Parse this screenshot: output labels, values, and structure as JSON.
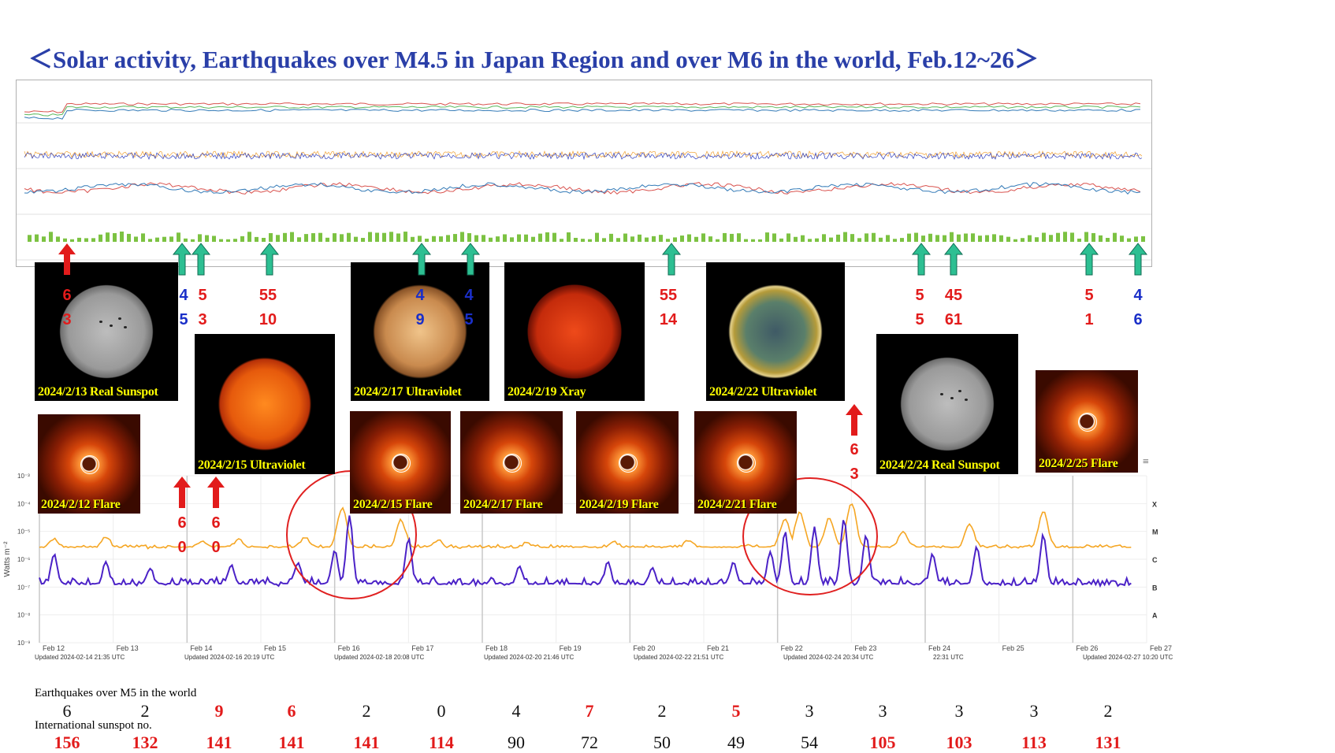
{
  "title": "＜Solar activity, Earthquakes over M4.5 in Japan Region and over M6 in the world, Feb.12~26＞",
  "colors": {
    "red": "#e21b1b",
    "blue": "#1a2fc8",
    "teal": "#2dbf92",
    "long_flux": "#f5a623",
    "short_flux": "#4b22c7",
    "title": "#2a3fa8"
  },
  "solar_images": [
    {
      "caption": "2024/2/13 Real Sunspot",
      "kind": "sunspot"
    },
    {
      "caption": "2024/2/15 Ultraviolet",
      "kind": "uv_red"
    },
    {
      "caption": "2024/2/17 Ultraviolet",
      "kind": "uv_gold"
    },
    {
      "caption": "2024/2/19 Xray",
      "kind": "xray"
    },
    {
      "caption": "2024/2/22 Ultraviolet",
      "kind": "uv_teal"
    },
    {
      "caption": "2024/2/24 Real Sunspot",
      "kind": "sunspot"
    },
    {
      "caption": "2024/2/25 Flare",
      "kind": "flare"
    },
    {
      "caption": "2024/2/12 Flare",
      "kind": "flare"
    },
    {
      "caption": "2024/2/15 Flare",
      "kind": "flare"
    },
    {
      "caption": "2024/2/17 Flare",
      "kind": "flare"
    },
    {
      "caption": "2024/2/19 Flare",
      "kind": "flare"
    },
    {
      "caption": "2024/2/21 Flare",
      "kind": "flare"
    }
  ],
  "quake_markers": [
    {
      "arrow": "red",
      "top": "6",
      "bottom": "3"
    },
    {
      "arrow": "teal",
      "top": "4",
      "bottom": "5",
      "top_color": "blue",
      "bottom_color": "blue"
    },
    {
      "arrow": "teal",
      "top": "5",
      "bottom": "3"
    },
    {
      "arrow": "teal",
      "top": "55",
      "bottom": "10"
    },
    {
      "arrow": "teal",
      "top": "4",
      "bottom": "9",
      "top_color": "blue",
      "bottom_color": "blue"
    },
    {
      "arrow": "teal",
      "top": "4",
      "bottom": "5",
      "top_color": "blue",
      "bottom_color": "blue"
    },
    {
      "arrow": "teal",
      "top": "55",
      "bottom": "14"
    },
    {
      "arrow": "teal",
      "top": "5",
      "bottom": "5"
    },
    {
      "arrow": "teal",
      "top": "45",
      "bottom": "61"
    },
    {
      "arrow": "teal",
      "top": "5",
      "bottom": "1"
    },
    {
      "arrow": "teal",
      "top": "4",
      "bottom": "6",
      "top_color": "blue",
      "bottom_color": "blue"
    },
    {
      "arrow": "red",
      "top": "6",
      "bottom": "0"
    },
    {
      "arrow": "red",
      "top": "6",
      "bottom": "0"
    },
    {
      "arrow": "red",
      "top": "6",
      "bottom": "3"
    }
  ],
  "chart_data": {
    "type": "line",
    "title": "",
    "ylabel": "Watts m⁻²",
    "y_scale": "log",
    "ylim": [
      1e-09,
      0.001
    ],
    "y_ticks": [
      "10⁻³",
      "10⁻⁴",
      "10⁻⁵",
      "10⁻⁶",
      "10⁻⁷",
      "10⁻⁸",
      "10⁻⁹"
    ],
    "class_labels": [
      "X",
      "M",
      "C",
      "B",
      "A"
    ],
    "x_ticks": [
      "Feb 12",
      "Feb 13",
      "Feb 14",
      "Feb 15",
      "Feb 16",
      "Feb 17",
      "Feb 18",
      "Feb 19",
      "Feb 20",
      "Feb 21",
      "Feb 22",
      "Feb 23",
      "Feb 24",
      "Feb 25",
      "Feb 26",
      "Feb 27"
    ],
    "updated_labels": [
      "Updated 2024-02-14 21:35 UTC",
      "Updated 2024-02-16 20:19 UTC",
      "Updated 2024-02-18 20:08 UTC",
      "Updated 2024-02-20 21:46 UTC",
      "Updated 2024-02-22 21:51 UTC",
      "Updated 2024-02-24 20:34 UTC",
      "22:31 UTC",
      "Updated 2024-02-27 10:20 UTC"
    ],
    "series": [
      {
        "name": "",
        "color": "#f5a623",
        "peaks": [
          [
            12.2,
            5.4e-06
          ],
          [
            12.9,
            6e-06
          ],
          [
            14.2,
            4.5e-06
          ],
          [
            14.7,
            5e-06
          ],
          [
            15.6,
            6e-06
          ],
          [
            16.1,
            7e-05
          ],
          [
            16.9,
            2.5e-05
          ],
          [
            17.4,
            5e-06
          ],
          [
            18.6,
            4e-06
          ],
          [
            19.8,
            4e-06
          ],
          [
            20.8,
            5e-06
          ],
          [
            21.6,
            3.5e-06
          ],
          [
            22.1,
            3e-05
          ],
          [
            22.3,
            5e-05
          ],
          [
            22.7,
            3e-05
          ],
          [
            23.0,
            0.00011
          ],
          [
            23.7,
            1e-05
          ],
          [
            24.6,
            2e-05
          ],
          [
            25.6,
            5e-05
          ],
          [
            26.6,
            3e-06
          ]
        ],
        "baseline": 2.5e-06
      },
      {
        "name": "",
        "color": "#4b22c7",
        "peaks": [
          [
            12.2,
            1.5e-06
          ],
          [
            12.9,
            8e-07
          ],
          [
            13.5,
            5e-07
          ],
          [
            14.6,
            6e-07
          ],
          [
            15.5,
            8e-07
          ],
          [
            16.0,
            2e-06
          ],
          [
            16.2,
            4e-05
          ],
          [
            17.0,
            6e-06
          ],
          [
            18.5,
            6e-07
          ],
          [
            19.7,
            8e-07
          ],
          [
            20.3,
            5e-07
          ],
          [
            21.4,
            8e-07
          ],
          [
            21.9,
            2e-06
          ],
          [
            22.1,
            1e-05
          ],
          [
            22.5,
            1.5e-05
          ],
          [
            22.9,
            3e-05
          ],
          [
            23.2,
            8e-06
          ],
          [
            24.1,
            1.5e-06
          ],
          [
            24.7,
            3e-06
          ],
          [
            25.6,
            8e-06
          ],
          [
            26.7,
            8e-08
          ]
        ],
        "baseline": 1.2e-07
      }
    ]
  },
  "bottom": {
    "label_quakes": "Earthquakes over M5 in the world",
    "label_sunspot": "International sunspot no.",
    "quakes": [
      {
        "v": "6",
        "red": false
      },
      {
        "v": "2",
        "red": false
      },
      {
        "v": "9",
        "red": true
      },
      {
        "v": "6",
        "red": true
      },
      {
        "v": "2",
        "red": false
      },
      {
        "v": "0",
        "red": false
      },
      {
        "v": "4",
        "red": false
      },
      {
        "v": "7",
        "red": true
      },
      {
        "v": "2",
        "red": false
      },
      {
        "v": "5",
        "red": true
      },
      {
        "v": "3",
        "red": false
      },
      {
        "v": "3",
        "red": false
      },
      {
        "v": "3",
        "red": false
      },
      {
        "v": "3",
        "red": false
      },
      {
        "v": "2",
        "red": false
      }
    ],
    "sunspots": [
      {
        "v": "156",
        "red": true
      },
      {
        "v": "132",
        "red": true
      },
      {
        "v": "141",
        "red": true
      },
      {
        "v": "141",
        "red": true
      },
      {
        "v": "141",
        "red": true
      },
      {
        "v": "114",
        "red": true
      },
      {
        "v": "90",
        "red": false
      },
      {
        "v": "72",
        "red": false
      },
      {
        "v": "50",
        "red": false
      },
      {
        "v": "49",
        "red": false
      },
      {
        "v": "54",
        "red": false
      },
      {
        "v": "105",
        "red": true
      },
      {
        "v": "103",
        "red": true
      },
      {
        "v": "113",
        "red": true
      },
      {
        "v": "131",
        "red": true
      }
    ]
  }
}
